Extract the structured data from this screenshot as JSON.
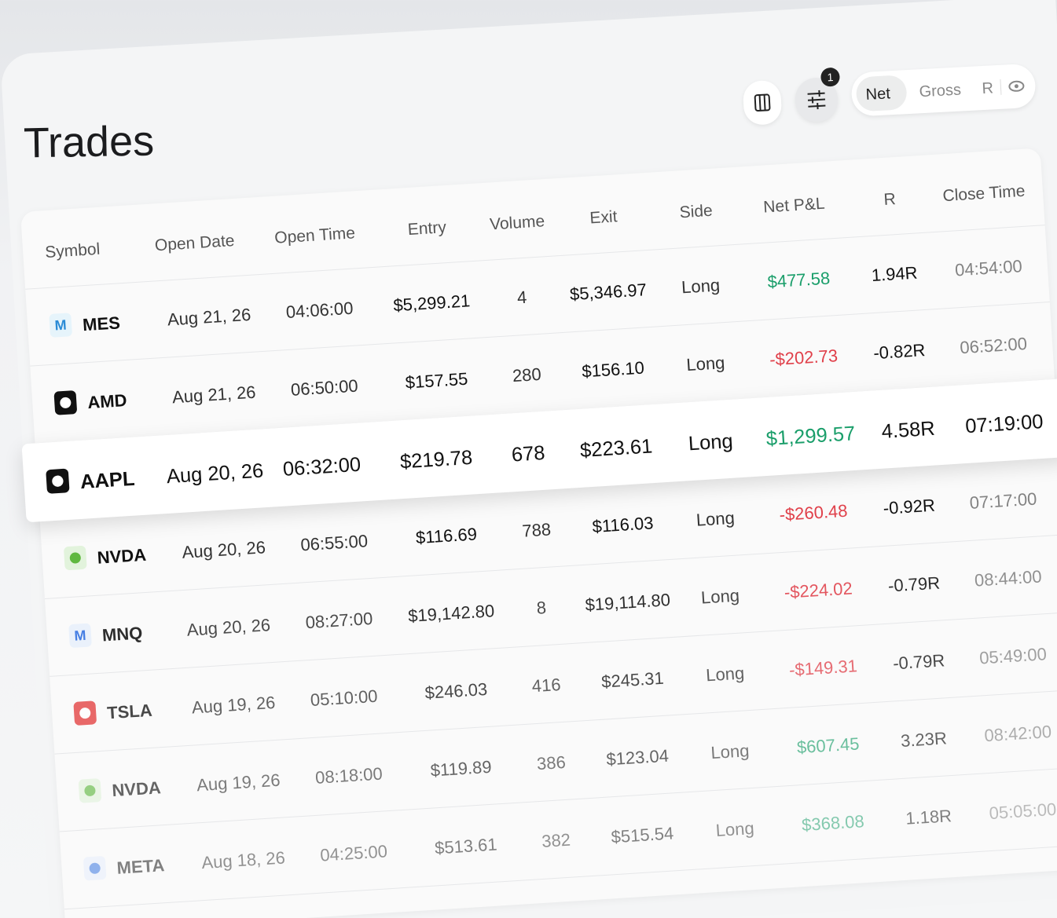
{
  "header": {
    "title": "Trades",
    "filter_badge": "1",
    "toggle": [
      "Net",
      "Gross",
      "R"
    ]
  },
  "table": {
    "columns": [
      "Symbol",
      "Open Date",
      "Open Time",
      "Entry",
      "Volume",
      "Exit",
      "Side",
      "Net P&L",
      "R",
      "Close Time"
    ],
    "rows": [
      {
        "badge": "M",
        "symbol": "MES",
        "open_date": "Aug 21, 26",
        "open_time": "04:06:00",
        "entry": "$5,299.21",
        "volume": "4",
        "exit": "$5,346.97",
        "side": "Long",
        "net_pnl": "$477.58",
        "r": "1.94R",
        "close_time": "04:54:00"
      },
      {
        "symbol": "AMD",
        "open_date": "Aug 21, 26",
        "open_time": "06:50:00",
        "entry": "$157.55",
        "volume": "280",
        "exit": "$156.10",
        "side": "Long",
        "net_pnl": "-$202.73",
        "r": "-0.82R",
        "close_time": "06:52:00"
      },
      {
        "symbol": "AAPL",
        "open_date": "Aug 20, 26",
        "open_time": "06:32:00",
        "entry": "$219.78",
        "volume": "678",
        "exit": "$223.61",
        "side": "Long",
        "net_pnl": "$1,299.57",
        "r": "4.58R",
        "close_time": "07:19:00"
      },
      {
        "symbol": "NVDA",
        "open_date": "Aug 20, 26",
        "open_time": "06:55:00",
        "entry": "$116.69",
        "volume": "788",
        "exit": "$116.03",
        "side": "Long",
        "net_pnl": "-$260.48",
        "r": "-0.92R",
        "close_time": "07:17:00"
      },
      {
        "badge": "M",
        "symbol": "MNQ",
        "open_date": "Aug 20, 26",
        "open_time": "08:27:00",
        "entry": "$19,142.80",
        "volume": "8",
        "exit": "$19,114.80",
        "side": "Long",
        "net_pnl": "-$224.02",
        "r": "-0.79R",
        "close_time": "08:44:00"
      },
      {
        "symbol": "TSLA",
        "open_date": "Aug 19, 26",
        "open_time": "05:10:00",
        "entry": "$246.03",
        "volume": "416",
        "exit": "$245.31",
        "side": "Long",
        "net_pnl": "-$149.31",
        "r": "-0.79R",
        "close_time": "05:49:00"
      },
      {
        "symbol": "NVDA",
        "open_date": "Aug 19, 26",
        "open_time": "08:18:00",
        "entry": "$119.89",
        "volume": "386",
        "exit": "$123.04",
        "side": "Long",
        "net_pnl": "$607.45",
        "r": "3.23R",
        "close_time": "08:42:00"
      },
      {
        "symbol": "META",
        "open_date": "Aug 18, 26",
        "open_time": "04:25:00",
        "entry": "$513.61",
        "volume": "382",
        "exit": "$515.54",
        "side": "Long",
        "net_pnl": "$368.08",
        "r": "1.18R",
        "close_time": "05:05:00"
      }
    ]
  }
}
